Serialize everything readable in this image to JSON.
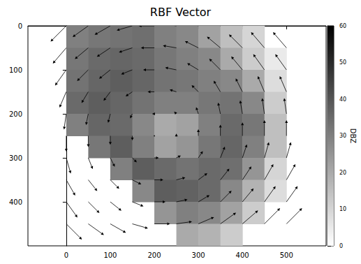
{
  "chart_data": {
    "type": "quiver_heatmap",
    "title": "RBF Vector",
    "xlim": [
      -87,
      590
    ],
    "xticks": [
      0,
      100,
      200,
      300,
      400,
      500
    ],
    "ylim": [
      0,
      500
    ],
    "yticks": [
      0,
      100,
      200,
      300,
      400
    ],
    "grid": false,
    "color": "#000000",
    "cells": {
      "x": [
        25,
        75,
        125,
        175,
        225,
        275,
        325,
        375,
        425,
        475
      ],
      "y": [
        25,
        75,
        125,
        175,
        225,
        275,
        325,
        375,
        425,
        475
      ],
      "dbz": [
        [
          30,
          32,
          33,
          34,
          30,
          28,
          22,
          15,
          10,
          null
        ],
        [
          32,
          35,
          36,
          35,
          32,
          30,
          28,
          20,
          12,
          5
        ],
        [
          33,
          36,
          38,
          36,
          33,
          32,
          30,
          28,
          20,
          8
        ],
        [
          35,
          38,
          36,
          33,
          30,
          30,
          32,
          33,
          28,
          12
        ],
        [
          30,
          36,
          35,
          28,
          20,
          22,
          30,
          35,
          32,
          15
        ],
        [
          null,
          32,
          38,
          30,
          22,
          25,
          32,
          36,
          30,
          15
        ],
        [
          null,
          null,
          30,
          38,
          35,
          33,
          35,
          34,
          25,
          10
        ],
        [
          null,
          null,
          null,
          28,
          38,
          37,
          35,
          28,
          18,
          8
        ],
        [
          null,
          null,
          null,
          null,
          25,
          30,
          28,
          22,
          12,
          null
        ],
        [
          null,
          null,
          null,
          null,
          null,
          20,
          18,
          12,
          null,
          null
        ]
      ]
    },
    "vectors": {
      "x": [
        0,
        50,
        100,
        150,
        200,
        250,
        300,
        350,
        400,
        450,
        500
      ],
      "y": [
        0,
        50,
        100,
        150,
        200,
        250,
        300,
        350,
        400,
        450
      ],
      "u": [
        [
          -7,
          -7,
          -7,
          -7,
          -7,
          -7,
          -7,
          -7,
          -7,
          -7,
          -7
        ],
        [
          -6,
          -6,
          -6,
          -6,
          -6,
          -6,
          -6,
          -6,
          -6,
          -6,
          -6
        ],
        [
          -5,
          -5,
          -5,
          -5,
          -5,
          -5,
          -5,
          -5,
          -5,
          -5,
          -5
        ],
        [
          -3,
          -3,
          -3,
          -3,
          -3,
          -3,
          -3,
          -3,
          -3,
          -3,
          -3
        ],
        [
          -1,
          -1,
          -1,
          -1,
          -1,
          -1,
          -1,
          -1,
          -1,
          -1,
          -1
        ],
        [
          0,
          0,
          0,
          0,
          0,
          0,
          0,
          0,
          0,
          0,
          0
        ],
        [
          2,
          2,
          2,
          2,
          2,
          2,
          2,
          2,
          2,
          2,
          2
        ],
        [
          4,
          4,
          4,
          4,
          4,
          4,
          4,
          4,
          4,
          4,
          4
        ],
        [
          5,
          5,
          5,
          5,
          5,
          5,
          5,
          5,
          5,
          5,
          5
        ],
        [
          7,
          7,
          7,
          7,
          7,
          7,
          7,
          7,
          7,
          7,
          7
        ]
      ],
      "v": [
        [
          7,
          5,
          4,
          2,
          0,
          -1,
          -3,
          -5,
          -6,
          -7,
          -7
        ],
        [
          7,
          5,
          4,
          2,
          0,
          -1,
          -3,
          -5,
          -6,
          -7,
          -7
        ],
        [
          7,
          5,
          4,
          2,
          0,
          -1,
          -3,
          -5,
          -6,
          -7,
          -7
        ],
        [
          7,
          5,
          4,
          2,
          0,
          -1,
          -3,
          -5,
          -6,
          -7,
          -7
        ],
        [
          7,
          5,
          4,
          2,
          0,
          -1,
          -3,
          -5,
          -6,
          -7,
          -7
        ],
        [
          7,
          5,
          4,
          2,
          0,
          -1,
          -3,
          -5,
          -6,
          -7,
          -7
        ],
        [
          7,
          5,
          4,
          2,
          0,
          -1,
          -3,
          -5,
          -6,
          -7,
          -7
        ],
        [
          7,
          5,
          4,
          2,
          0,
          -1,
          -3,
          -5,
          -6,
          -7,
          -7
        ],
        [
          7,
          5,
          4,
          2,
          0,
          -1,
          -3,
          -5,
          -6,
          -7,
          -7
        ],
        [
          7,
          5,
          4,
          2,
          0,
          -1,
          -3,
          -5,
          -6,
          -7,
          -7
        ]
      ]
    },
    "colorbar": {
      "label": "DBZ",
      "range": [
        0,
        60
      ],
      "ticks": [
        0,
        10,
        20,
        30,
        40,
        50,
        60
      ]
    }
  }
}
